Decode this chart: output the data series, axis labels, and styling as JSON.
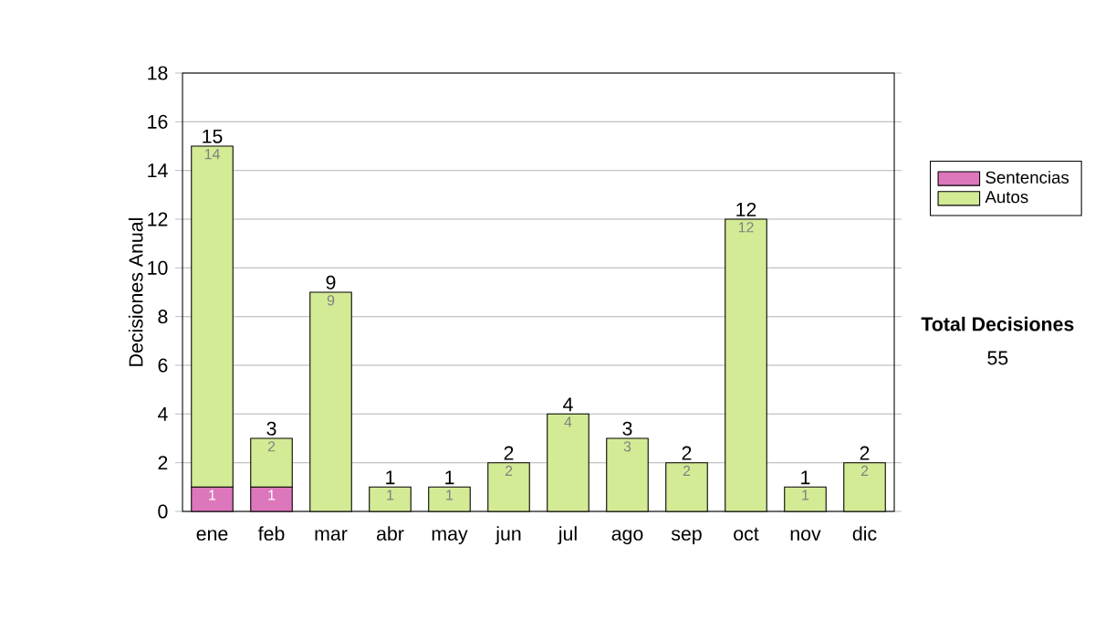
{
  "chart_data": {
    "type": "bar",
    "stacked": true,
    "ylabel": "Decisiones Anual",
    "categories": [
      "ene",
      "feb",
      "mar",
      "abr",
      "may",
      "jun",
      "jul",
      "ago",
      "sep",
      "oct",
      "nov",
      "dic"
    ],
    "series": [
      {
        "name": "Sentencias",
        "color": "#dd77bb",
        "values": [
          1,
          1,
          null,
          null,
          null,
          null,
          null,
          null,
          null,
          null,
          null,
          null
        ]
      },
      {
        "name": "Autos",
        "color": "#d4eb96",
        "values": [
          14,
          2,
          9,
          1,
          1,
          2,
          4,
          3,
          2,
          12,
          1,
          2
        ]
      }
    ],
    "totals": [
      "15",
      "3",
      "9",
      "1",
      "1",
      "2",
      "4",
      "3",
      "2",
      "12",
      "1",
      "2"
    ],
    "data_labels": true,
    "ylim": [
      0,
      18
    ],
    "yticks": [
      0,
      2,
      4,
      6,
      8,
      10,
      12,
      14,
      16,
      18
    ],
    "grid": "y",
    "legend": "right",
    "annotations": [
      "Total Decisiones",
      "55"
    ]
  }
}
